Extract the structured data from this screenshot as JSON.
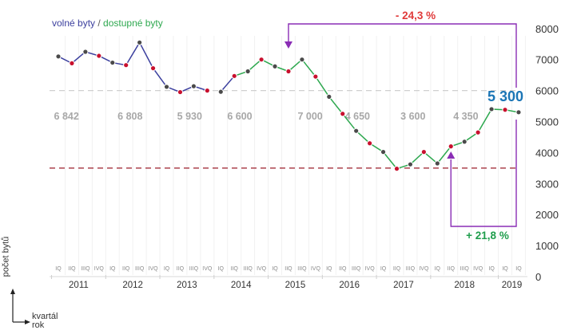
{
  "legend": {
    "series_a": "volné byty",
    "sep": " / ",
    "series_b": "dostupné byty"
  },
  "axis_titles": {
    "y": "počet bytů",
    "x1": "kvartál",
    "x2": "rok"
  },
  "colors": {
    "series_a": "#3b3f9e",
    "series_b": "#2ea84f",
    "marker_a": "#4a4a4a",
    "marker_b": "#c8102e",
    "callout_line": "#8a2db5",
    "neg": "#e03a3a",
    "pos": "#1f9d4c",
    "highlight": "#1b75b5",
    "muted": "#a8a8a8"
  },
  "chart_data": {
    "type": "line",
    "ylim": [
      0,
      8000
    ],
    "yticks": [
      "0",
      "1000",
      "2000",
      "3000",
      "4000",
      "5000",
      "6000",
      "7000",
      "8000"
    ],
    "quarters": [
      "IQ",
      "IIQ",
      "IIIQ",
      "IVQ",
      "IQ",
      "IIQ",
      "IIIQ",
      "IVQ",
      "IQ",
      "IIQ",
      "IIIQ",
      "IVQ",
      "IQ",
      "IIQ",
      "IIIQ",
      "IVQ",
      "IQ",
      "IIQ",
      "IIIQ",
      "IVQ",
      "IQ",
      "IIQ",
      "IIIQ",
      "IVQ",
      "IQ",
      "IIQ",
      "IIIQ",
      "IVQ",
      "IQ",
      "IIQ",
      "IIIQ",
      "IVQ",
      "IQ",
      "IQ",
      "IQ"
    ],
    "years": [
      {
        "label": "2011",
        "start": 0,
        "end": 3
      },
      {
        "label": "2012",
        "start": 4,
        "end": 7
      },
      {
        "label": "2013",
        "start": 8,
        "end": 11
      },
      {
        "label": "2014",
        "start": 12,
        "end": 15
      },
      {
        "label": "2015",
        "start": 16,
        "end": 19
      },
      {
        "label": "2016",
        "start": 20,
        "end": 23
      },
      {
        "label": "2017",
        "start": 24,
        "end": 27
      },
      {
        "label": "2018",
        "start": 28,
        "end": 32
      },
      {
        "label": "2019",
        "start": 33,
        "end": 34
      }
    ],
    "series": [
      {
        "name": "volné byty",
        "x": [
          0,
          1,
          2,
          3,
          4,
          5,
          6,
          7,
          8,
          9,
          10,
          11
        ],
        "values": [
          7100,
          6880,
          7250,
          7120,
          6900,
          6820,
          7550,
          6720,
          6120,
          5950,
          6140,
          6000
        ]
      },
      {
        "name": "volné byty",
        "x": [
          12,
          13
        ],
        "values": [
          5960,
          6470
        ]
      },
      {
        "name": "dostupné byty",
        "x": [
          13,
          14,
          15,
          16,
          17,
          18,
          19,
          20,
          21,
          22,
          23,
          24,
          25,
          26,
          27,
          28,
          29,
          30,
          31,
          32,
          33,
          34
        ],
        "values": [
          6470,
          6620,
          7000,
          6780,
          6620,
          7000,
          6450,
          5800,
          5250,
          4700,
          4300,
          4020,
          3480,
          3620,
          4020,
          3650,
          4200,
          4350,
          4650,
          5400,
          5380,
          5300
        ]
      }
    ],
    "value_labels": [
      {
        "x": 0.6,
        "text": "6 842"
      },
      {
        "x": 5.3,
        "text": "6 808"
      },
      {
        "x": 9.7,
        "text": "5 930"
      },
      {
        "x": 13.4,
        "text": "6 600"
      },
      {
        "x": 18.6,
        "text": "7 000"
      },
      {
        "x": 22.1,
        "text": "4 650"
      },
      {
        "x": 26.2,
        "text": "3 600"
      },
      {
        "x": 30.1,
        "text": "4 350"
      }
    ],
    "reference_lines": [
      {
        "y": 6000,
        "style": "grey-dashed"
      },
      {
        "y": 3500,
        "style": "red-dashed"
      }
    ],
    "annotations": {
      "current": "5 300",
      "drop": "- 24,3 %",
      "rise": "+ 21,8 %"
    }
  }
}
